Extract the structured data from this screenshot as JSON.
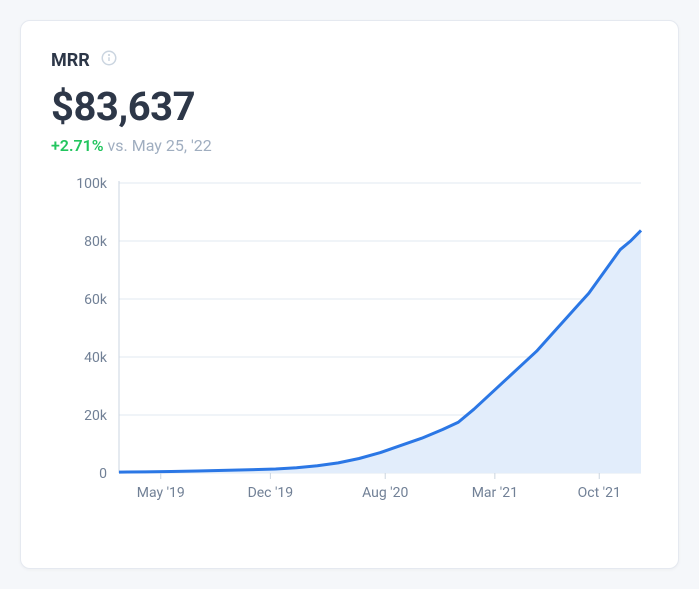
{
  "header": {
    "title": "MRR",
    "info_icon": "info-circle"
  },
  "metric": {
    "value": "$83,637",
    "delta_pct": "+2.71%",
    "delta_text": " vs. May 25, '22"
  },
  "chart": {
    "type": "area",
    "ylim": [
      0,
      100000
    ],
    "ytick_vals": [
      0,
      20000,
      40000,
      60000,
      80000,
      100000
    ],
    "ytick_labels": [
      "0",
      "20k",
      "40k",
      "60k",
      "80k",
      "100k"
    ],
    "xtick_labels": [
      "May '19",
      "Dec '19",
      "Aug '20",
      "Mar '21",
      "Oct '21"
    ],
    "xtick_positions": [
      0.08,
      0.29,
      0.51,
      0.72,
      0.92
    ],
    "series": [
      {
        "x": 0.0,
        "y": 300
      },
      {
        "x": 0.05,
        "y": 400
      },
      {
        "x": 0.1,
        "y": 500
      },
      {
        "x": 0.15,
        "y": 700
      },
      {
        "x": 0.2,
        "y": 900
      },
      {
        "x": 0.25,
        "y": 1100
      },
      {
        "x": 0.3,
        "y": 1400
      },
      {
        "x": 0.34,
        "y": 1800
      },
      {
        "x": 0.38,
        "y": 2500
      },
      {
        "x": 0.42,
        "y": 3500
      },
      {
        "x": 0.46,
        "y": 5000
      },
      {
        "x": 0.5,
        "y": 7000
      },
      {
        "x": 0.54,
        "y": 9500
      },
      {
        "x": 0.58,
        "y": 12000
      },
      {
        "x": 0.62,
        "y": 15000
      },
      {
        "x": 0.65,
        "y": 17500
      },
      {
        "x": 0.68,
        "y": 22000
      },
      {
        "x": 0.71,
        "y": 27000
      },
      {
        "x": 0.74,
        "y": 32000
      },
      {
        "x": 0.77,
        "y": 37000
      },
      {
        "x": 0.8,
        "y": 42000
      },
      {
        "x": 0.83,
        "y": 48000
      },
      {
        "x": 0.86,
        "y": 54000
      },
      {
        "x": 0.88,
        "y": 58000
      },
      {
        "x": 0.9,
        "y": 62000
      },
      {
        "x": 0.92,
        "y": 67000
      },
      {
        "x": 0.94,
        "y": 72000
      },
      {
        "x": 0.96,
        "y": 77000
      },
      {
        "x": 0.98,
        "y": 80000
      },
      {
        "x": 1.0,
        "y": 83637
      }
    ],
    "line_color": "#2b77e5",
    "line_width": 3,
    "fill_color": "#e2edfb",
    "gridline_color": "#e2e8f0",
    "axis_color": "#cbd5e0",
    "background_color": "#ffffff",
    "label_color": "#718096",
    "label_fontsize": 14
  },
  "colors": {
    "card_bg": "#ffffff",
    "card_border": "#e5e9f0",
    "title_color": "#2d3748",
    "value_color": "#2d3748",
    "delta_positive": "#22c55e",
    "muted_text": "#a0aec0",
    "info_icon": "#cbd5e0"
  }
}
